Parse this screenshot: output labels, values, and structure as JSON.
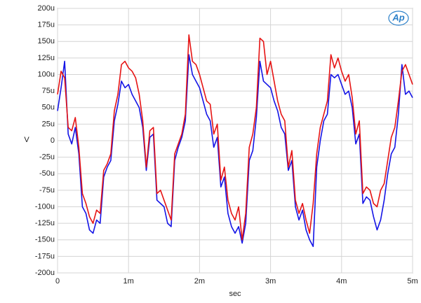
{
  "chart_data": {
    "type": "line",
    "xlabel": "sec",
    "ylabel": "V",
    "logo": "Ap",
    "x": [
      0,
      0.05,
      0.1,
      0.15,
      0.2,
      0.25,
      0.3,
      0.35,
      0.4,
      0.45,
      0.5,
      0.55,
      0.6,
      0.65,
      0.7,
      0.75,
      0.8,
      0.85,
      0.9,
      0.95,
      1,
      1.05,
      1.1,
      1.15,
      1.2,
      1.25,
      1.3,
      1.35,
      1.4,
      1.45,
      1.5,
      1.55,
      1.6,
      1.65,
      1.7,
      1.75,
      1.8,
      1.85,
      1.9,
      1.95,
      2,
      2.05,
      2.1,
      2.15,
      2.2,
      2.25,
      2.3,
      2.35,
      2.4,
      2.45,
      2.5,
      2.55,
      2.6,
      2.65,
      2.7,
      2.75,
      2.8,
      2.85,
      2.9,
      2.95,
      3,
      3.05,
      3.1,
      3.15,
      3.2,
      3.25,
      3.3,
      3.35,
      3.4,
      3.45,
      3.5,
      3.55,
      3.6,
      3.65,
      3.7,
      3.75,
      3.8,
      3.85,
      3.9,
      3.95,
      4,
      4.05,
      4.1,
      4.15,
      4.2,
      4.25,
      4.3,
      4.35,
      4.4,
      4.45,
      4.5,
      4.55,
      4.6,
      4.65,
      4.7,
      4.75,
      4.8,
      4.85,
      4.9,
      4.95,
      5
    ],
    "series": [
      {
        "color": "#1414e6",
        "values": [
          45,
          80,
          120,
          10,
          -5,
          20,
          -20,
          -100,
          -110,
          -135,
          -140,
          -120,
          -125,
          -55,
          -40,
          -30,
          30,
          55,
          90,
          80,
          85,
          70,
          60,
          50,
          20,
          -45,
          5,
          10,
          -90,
          -95,
          -100,
          -125,
          -130,
          -30,
          -10,
          5,
          30,
          130,
          100,
          90,
          80,
          60,
          40,
          30,
          -10,
          5,
          -70,
          -55,
          -110,
          -130,
          -140,
          -130,
          -155,
          -125,
          -30,
          -15,
          35,
          120,
          90,
          85,
          80,
          60,
          45,
          20,
          10,
          -45,
          -30,
          -100,
          -120,
          -105,
          -135,
          -150,
          -160,
          -40,
          0,
          30,
          40,
          100,
          95,
          100,
          85,
          70,
          75,
          50,
          -5,
          10,
          -95,
          -85,
          -90,
          -115,
          -135,
          -120,
          -90,
          -50,
          -20,
          -10,
          40,
          115,
          70,
          75,
          65
        ]
      },
      {
        "color": "#e61414",
        "values": [
          70,
          105,
          95,
          20,
          15,
          35,
          -10,
          -80,
          -95,
          -115,
          -125,
          -105,
          -110,
          -45,
          -35,
          -20,
          45,
          70,
          115,
          120,
          110,
          105,
          95,
          70,
          30,
          -40,
          15,
          20,
          -80,
          -75,
          -90,
          -105,
          -120,
          -20,
          -5,
          10,
          40,
          160,
          120,
          115,
          100,
          80,
          60,
          55,
          10,
          25,
          -60,
          -40,
          -90,
          -110,
          -120,
          -100,
          -150,
          -110,
          -10,
          10,
          50,
          155,
          150,
          100,
          120,
          90,
          60,
          40,
          30,
          -40,
          -15,
          -90,
          -110,
          -95,
          -120,
          -140,
          -95,
          -20,
          20,
          40,
          60,
          130,
          110,
          125,
          105,
          90,
          100,
          65,
          10,
          30,
          -80,
          -70,
          -75,
          -95,
          -100,
          -75,
          -65,
          -30,
          5,
          20,
          60,
          105,
          115,
          100,
          85
        ]
      }
    ],
    "xlim": [
      0,
      5
    ],
    "xticks": [
      0,
      {
        "value": 1,
        "label": "1m"
      },
      {
        "value": 2,
        "label": "2m"
      },
      {
        "value": 3,
        "label": "3m"
      },
      {
        "value": 4,
        "label": "4m"
      },
      {
        "value": 5,
        "label": "5m"
      }
    ],
    "ylim": [
      -200,
      200
    ],
    "yticks": [
      {
        "value": -200,
        "label": "-200u"
      },
      {
        "value": -175,
        "label": "-175u"
      },
      {
        "value": -150,
        "label": "-150u"
      },
      {
        "value": -125,
        "label": "-125u"
      },
      {
        "value": -100,
        "label": "-100u"
      },
      {
        "value": -75,
        "label": "-75u"
      },
      {
        "value": -50,
        "label": "-50u"
      },
      {
        "value": -25,
        "label": "-25u"
      },
      0,
      {
        "value": 25,
        "label": "25u"
      },
      {
        "value": 50,
        "label": "50u"
      },
      {
        "value": 75,
        "label": "75u"
      },
      {
        "value": 100,
        "label": "100u"
      },
      {
        "value": 125,
        "label": "125u"
      },
      {
        "value": 150,
        "label": "150u"
      },
      {
        "value": 175,
        "label": "175u"
      },
      {
        "value": 200,
        "label": "200u"
      }
    ],
    "grid": true
  }
}
